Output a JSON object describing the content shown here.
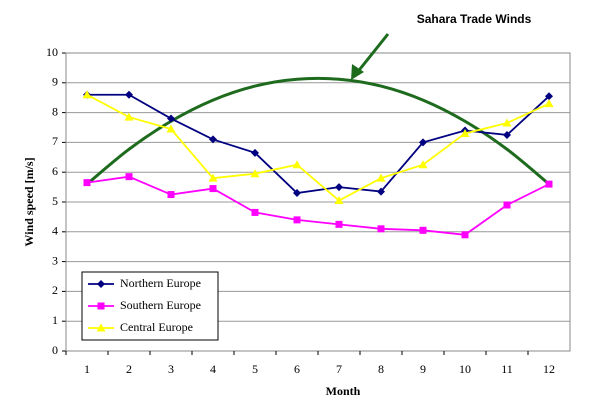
{
  "chart_data": {
    "type": "line",
    "x_label": "Month",
    "y_label": "Wind speed [m/s]",
    "categories": [
      1,
      2,
      3,
      4,
      5,
      6,
      7,
      8,
      9,
      10,
      11,
      12
    ],
    "series": [
      {
        "name": "Northern Europe",
        "color": "#000080",
        "marker": "diamond",
        "values": [
          8.6,
          8.6,
          7.8,
          7.1,
          6.65,
          5.3,
          5.5,
          5.35,
          7.0,
          7.4,
          7.25,
          8.55
        ]
      },
      {
        "name": "Southern Europe",
        "color": "#ff00ff",
        "marker": "square",
        "values": [
          5.65,
          5.85,
          5.25,
          5.45,
          4.65,
          4.4,
          4.25,
          4.1,
          4.05,
          3.9,
          4.9,
          5.6
        ]
      },
      {
        "name": "Central Europe",
        "color": "#ffff00",
        "marker": "triangle",
        "values": [
          8.6,
          7.85,
          7.45,
          5.8,
          5.95,
          6.25,
          5.05,
          5.8,
          6.25,
          7.3,
          7.65,
          8.3
        ]
      }
    ],
    "annotation": {
      "text": "Sahara Trade Winds",
      "color": "#1e6b1e",
      "values": [
        5.6,
        6.77,
        7.71,
        8.42,
        8.89,
        9.12,
        9.12,
        8.89,
        8.42,
        7.71,
        6.77,
        5.6
      ]
    },
    "ylim": [
      0,
      10
    ],
    "yticks": [
      0,
      1,
      2,
      3,
      4,
      5,
      6,
      7,
      8,
      9,
      10
    ],
    "grid": true,
    "legend": "lower left"
  }
}
